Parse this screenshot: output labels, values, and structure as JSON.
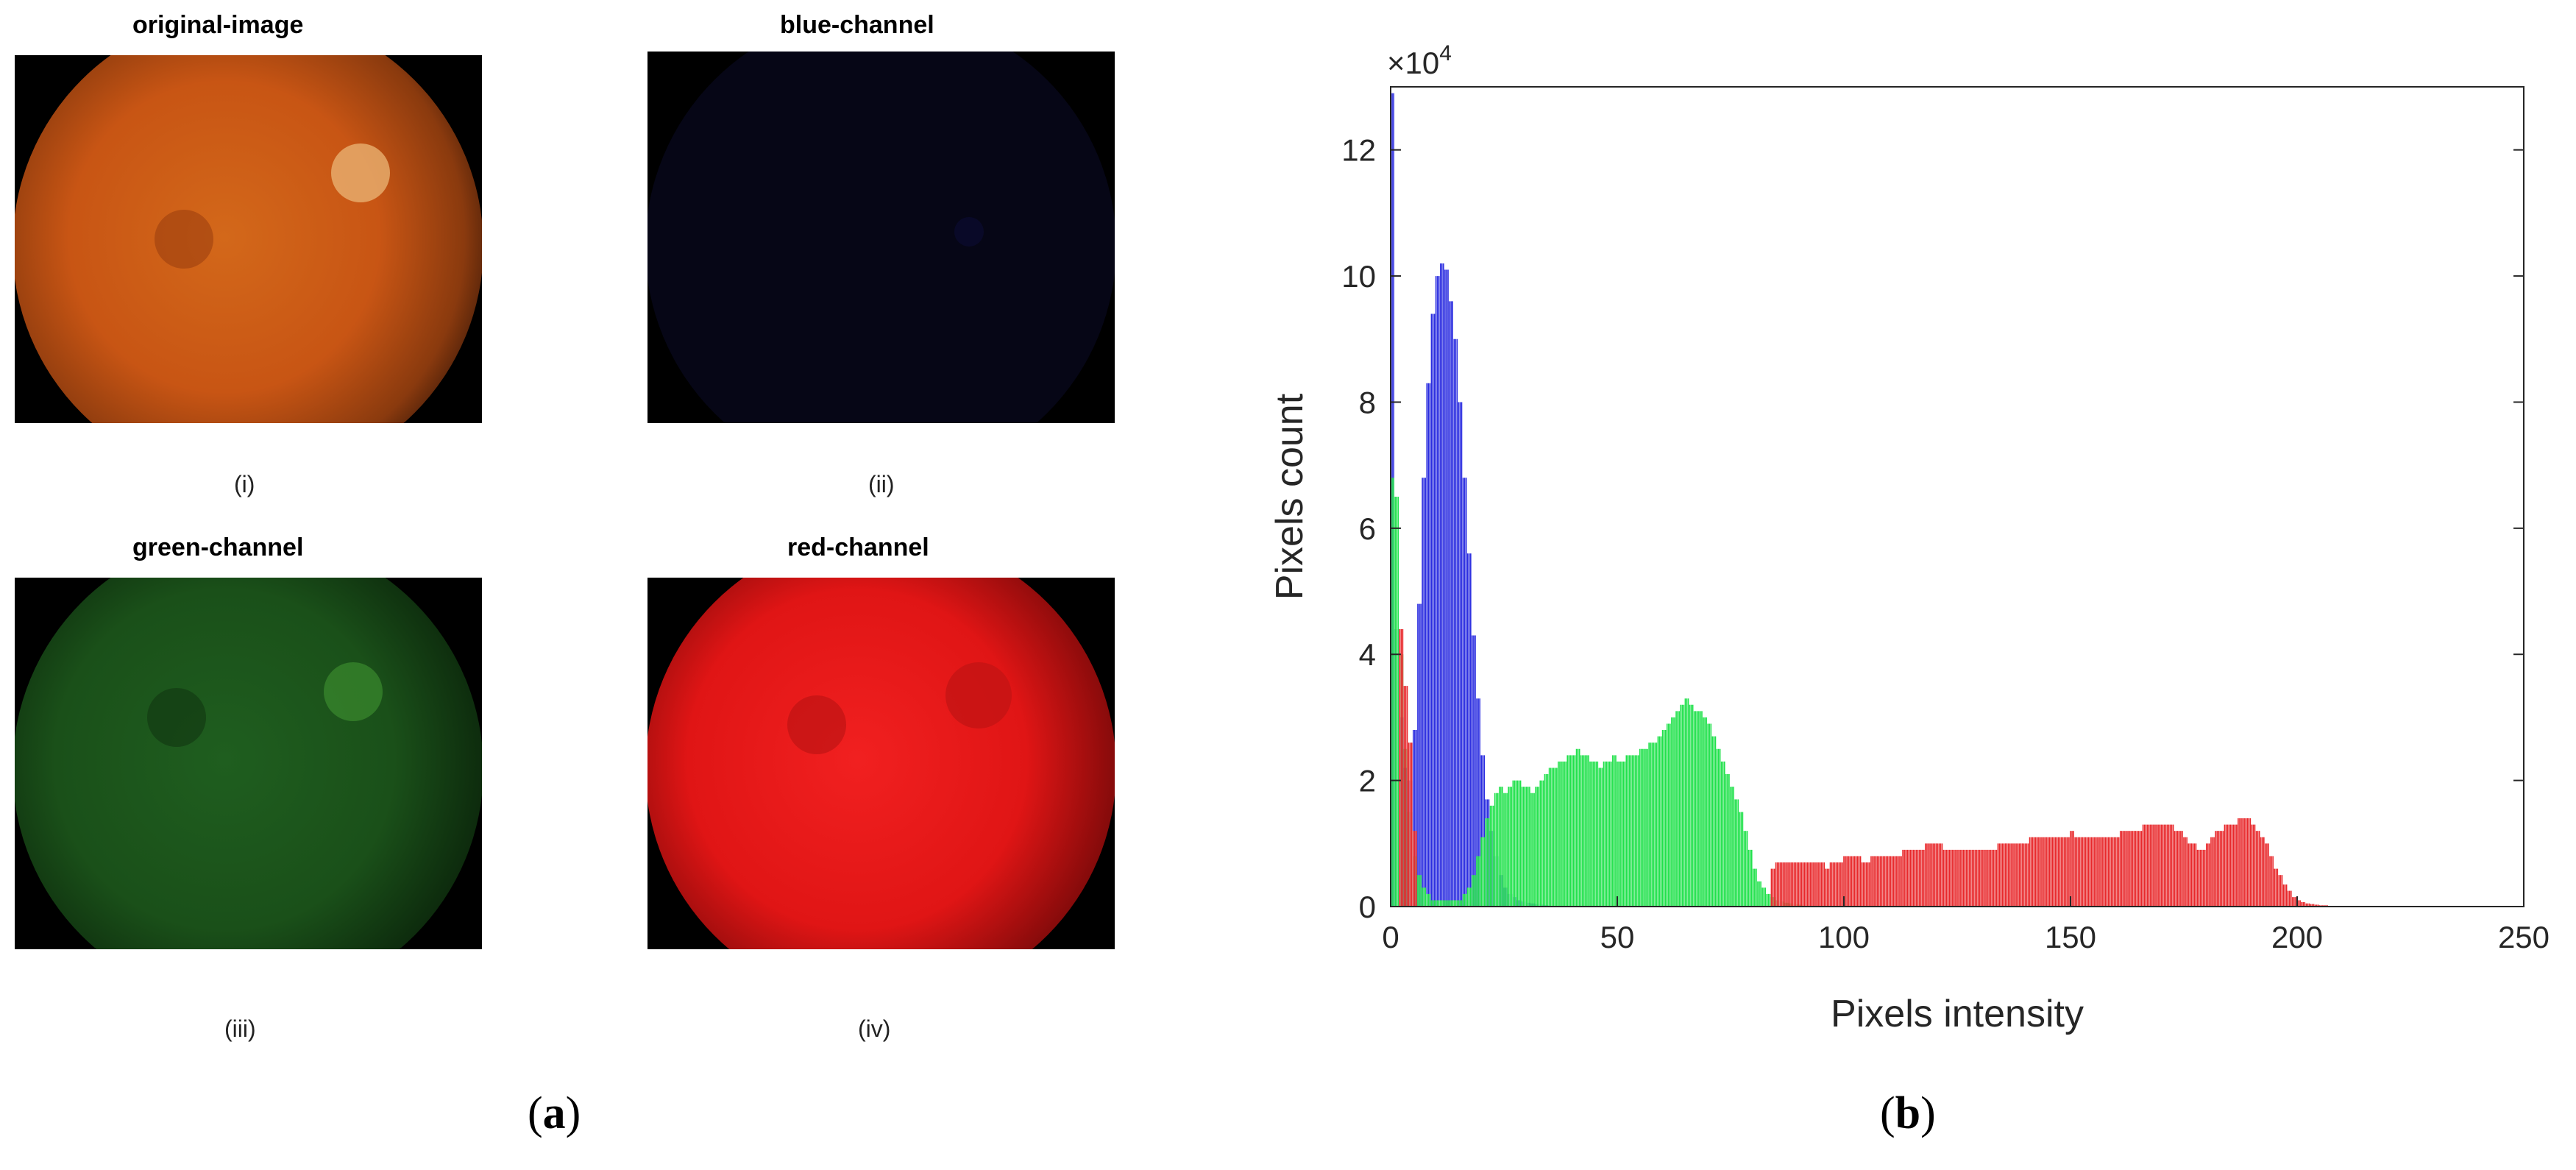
{
  "panel_a": {
    "label": "a",
    "images": [
      {
        "title": "original-image",
        "caption": "(i)"
      },
      {
        "title": "blue-channel",
        "caption": "(ii)"
      },
      {
        "title": "green-channel",
        "caption": "(iii)"
      },
      {
        "title": "red-channel",
        "caption": "(iv)"
      }
    ]
  },
  "panel_b": {
    "label": "b"
  },
  "colors": {
    "red": "#e8272a",
    "green": "#1fe14a",
    "blue": "#2a2ce0"
  },
  "chart_data": {
    "type": "bar",
    "title": "",
    "xlabel": "Pixels intensity",
    "ylabel": "Pixels count",
    "y_exponent_label": "×10",
    "y_exponent": "4",
    "xlim": [
      0,
      250
    ],
    "ylim": [
      0,
      13
    ],
    "xticks": [
      0,
      50,
      100,
      150,
      200,
      250
    ],
    "yticks": [
      0,
      2,
      4,
      6,
      8,
      10,
      12
    ],
    "y_unit_multiplier": 10000,
    "grid": false,
    "series": [
      {
        "color": "blue",
        "x": [
          0,
          1,
          2,
          3,
          4,
          5,
          6,
          7,
          8,
          9,
          10,
          11,
          12,
          13,
          14,
          15,
          16,
          17,
          18,
          19,
          20,
          21,
          22,
          23,
          24,
          25,
          26,
          27,
          28,
          29,
          30,
          31,
          32,
          33,
          34,
          35
        ],
        "values": [
          12.9,
          4.4,
          3.0,
          2.2,
          2.0,
          2.8,
          4.8,
          6.8,
          8.3,
          9.4,
          10.0,
          10.2,
          10.1,
          9.6,
          9.0,
          8.0,
          6.8,
          5.6,
          4.3,
          3.3,
          2.4,
          1.7,
          1.2,
          0.8,
          0.5,
          0.3,
          0.2,
          0.15,
          0.1,
          0.08,
          0.06,
          0.05,
          0.04,
          0.03,
          0.02,
          0.01
        ]
      },
      {
        "color": "green",
        "x": [
          0,
          1,
          2,
          3,
          4,
          5,
          6,
          7,
          8,
          9,
          10,
          11,
          12,
          13,
          14,
          15,
          16,
          17,
          18,
          19,
          20,
          21,
          22,
          23,
          24,
          25,
          26,
          27,
          28,
          29,
          30,
          31,
          32,
          33,
          34,
          35,
          36,
          37,
          38,
          39,
          40,
          41,
          42,
          43,
          44,
          45,
          46,
          47,
          48,
          49,
          50,
          51,
          52,
          53,
          54,
          55,
          56,
          57,
          58,
          59,
          60,
          61,
          62,
          63,
          64,
          65,
          66,
          67,
          68,
          69,
          70,
          71,
          72,
          73,
          74,
          75,
          76,
          77,
          78,
          79,
          80,
          81,
          82,
          83,
          84,
          85,
          86,
          87,
          88,
          89,
          90
        ],
        "values": [
          6.8,
          6.5,
          4.0,
          2.5,
          1.5,
          0.8,
          0.5,
          0.3,
          0.2,
          0.1,
          0.1,
          0.1,
          0.1,
          0.1,
          0.1,
          0.1,
          0.2,
          0.3,
          0.5,
          0.8,
          1.1,
          1.4,
          1.6,
          1.8,
          1.9,
          1.8,
          1.9,
          2.0,
          2.0,
          1.9,
          1.9,
          1.8,
          1.9,
          2.0,
          2.1,
          2.2,
          2.2,
          2.3,
          2.3,
          2.4,
          2.4,
          2.5,
          2.4,
          2.4,
          2.3,
          2.3,
          2.2,
          2.3,
          2.3,
          2.4,
          2.3,
          2.3,
          2.4,
          2.4,
          2.4,
          2.5,
          2.5,
          2.6,
          2.6,
          2.7,
          2.8,
          2.9,
          3.0,
          3.1,
          3.2,
          3.3,
          3.2,
          3.1,
          3.1,
          3.0,
          2.9,
          2.7,
          2.5,
          2.3,
          2.1,
          1.9,
          1.7,
          1.5,
          1.2,
          0.9,
          0.6,
          0.4,
          0.3,
          0.2,
          0.15,
          0.1,
          0.08,
          0.06,
          0.05,
          0.04,
          0.03
        ]
      },
      {
        "color": "red",
        "x": [
          2,
          3,
          4,
          5,
          84,
          85,
          86,
          87,
          88,
          89,
          90,
          91,
          92,
          93,
          94,
          95,
          96,
          97,
          98,
          99,
          100,
          101,
          102,
          103,
          104,
          105,
          106,
          107,
          108,
          109,
          110,
          111,
          112,
          113,
          114,
          115,
          116,
          117,
          118,
          119,
          120,
          121,
          122,
          123,
          124,
          125,
          126,
          127,
          128,
          129,
          130,
          131,
          132,
          133,
          134,
          135,
          136,
          137,
          138,
          139,
          140,
          141,
          142,
          143,
          144,
          145,
          146,
          147,
          148,
          149,
          150,
          151,
          152,
          153,
          154,
          155,
          156,
          157,
          158,
          159,
          160,
          161,
          162,
          163,
          164,
          165,
          166,
          167,
          168,
          169,
          170,
          171,
          172,
          173,
          174,
          175,
          176,
          177,
          178,
          179,
          180,
          181,
          182,
          183,
          184,
          185,
          186,
          187,
          188,
          189,
          190,
          191,
          192,
          193,
          194,
          195,
          196,
          197,
          198,
          199,
          200,
          201,
          202,
          203,
          204,
          205,
          206,
          207,
          208,
          209,
          210
        ],
        "values": [
          4.4,
          3.5,
          2.6,
          1.2,
          0.6,
          0.7,
          0.7,
          0.7,
          0.7,
          0.7,
          0.7,
          0.7,
          0.7,
          0.7,
          0.7,
          0.7,
          0.6,
          0.7,
          0.7,
          0.7,
          0.8,
          0.8,
          0.8,
          0.8,
          0.7,
          0.7,
          0.8,
          0.8,
          0.8,
          0.8,
          0.8,
          0.8,
          0.8,
          0.9,
          0.9,
          0.9,
          0.9,
          0.9,
          1.0,
          1.0,
          1.0,
          1.0,
          0.9,
          0.9,
          0.9,
          0.9,
          0.9,
          0.9,
          0.9,
          0.9,
          0.9,
          0.9,
          0.9,
          0.9,
          1.0,
          1.0,
          1.0,
          1.0,
          1.0,
          1.0,
          1.0,
          1.1,
          1.1,
          1.1,
          1.1,
          1.1,
          1.1,
          1.1,
          1.1,
          1.1,
          1.2,
          1.1,
          1.1,
          1.1,
          1.1,
          1.1,
          1.1,
          1.1,
          1.1,
          1.1,
          1.1,
          1.2,
          1.2,
          1.2,
          1.2,
          1.2,
          1.3,
          1.3,
          1.3,
          1.3,
          1.3,
          1.3,
          1.3,
          1.2,
          1.2,
          1.1,
          1.0,
          1.0,
          0.9,
          0.9,
          1.0,
          1.1,
          1.2,
          1.2,
          1.3,
          1.3,
          1.3,
          1.4,
          1.4,
          1.4,
          1.3,
          1.2,
          1.1,
          1.0,
          0.8,
          0.6,
          0.5,
          0.35,
          0.25,
          0.15,
          0.1,
          0.07,
          0.05,
          0.04,
          0.03,
          0.02,
          0.02,
          0.01,
          0.01,
          0.01,
          0.01
        ]
      }
    ]
  }
}
